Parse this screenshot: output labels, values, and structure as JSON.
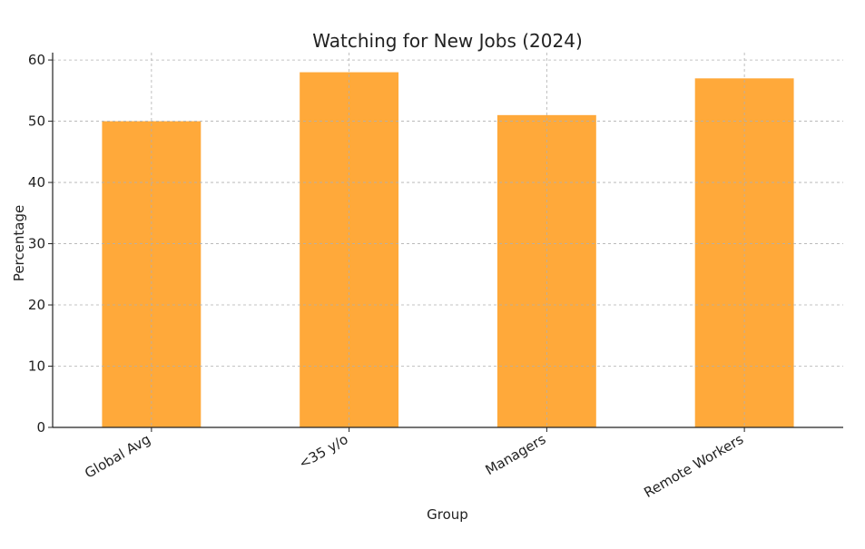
{
  "chart_data": {
    "type": "bar",
    "title": "Watching for New Jobs (2024)",
    "xlabel": "Group",
    "ylabel": "Percentage",
    "categories": [
      "Global Avg",
      "<35 y/o",
      "Managers",
      "Remote Workers"
    ],
    "values": [
      50,
      58,
      51,
      57
    ],
    "ylim": [
      0,
      60
    ],
    "yticks": [
      0,
      10,
      20,
      30,
      40,
      50,
      60
    ],
    "grid": true,
    "bar_color": "#ffa42f"
  }
}
